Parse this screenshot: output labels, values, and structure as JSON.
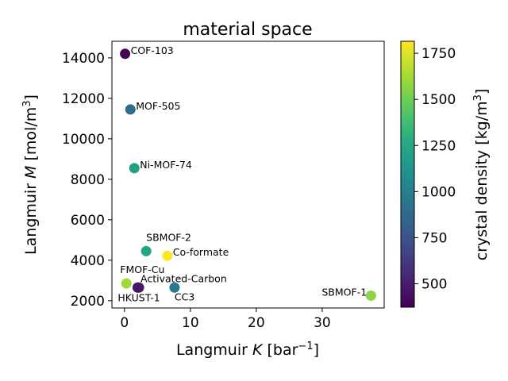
{
  "chart_data": {
    "type": "scatter",
    "title": "material space",
    "xlabel_text": "Langmuir ",
    "xlabel_var": "K",
    "xlabel_unit": " [bar",
    "xlabel_exp": "−1",
    "xlabel_close": "]",
    "ylabel_text": "Langmuir ",
    "ylabel_var": "M",
    "ylabel_unit": " [mol/m",
    "ylabel_exp": "3",
    "ylabel_close": "]",
    "xlim": [
      -1.9,
      39.4
    ],
    "ylim": [
      1640,
      14820
    ],
    "xticks": [
      0,
      10,
      20,
      30
    ],
    "yticks": [
      2000,
      4000,
      6000,
      8000,
      10000,
      12000,
      14000
    ],
    "colorbar": {
      "label_text": "crystal density [kg/m",
      "label_exp": "3",
      "label_close": "]",
      "colormap": "viridis",
      "range": [
        373,
        1815
      ],
      "ticks": [
        500,
        750,
        1000,
        1250,
        1500,
        1750
      ]
    },
    "points": [
      {
        "label": "COF-103",
        "x": 0.1,
        "y": 14200,
        "density": 390
      },
      {
        "label": "MOF-505",
        "x": 0.9,
        "y": 11450,
        "density": 900
      },
      {
        "label": "Ni-MOF-74",
        "x": 1.5,
        "y": 8550,
        "density": 1200
      },
      {
        "label": "SBMOF-2",
        "x": 3.3,
        "y": 4450,
        "density": 1220
      },
      {
        "label": "Co-formate",
        "x": 6.5,
        "y": 4220,
        "density": 1815
      },
      {
        "label": "FMOF-Cu",
        "x": 0.3,
        "y": 2850,
        "density": 1620
      },
      {
        "label": "Activated-Carbon",
        "x": 2.2,
        "y": 2650,
        "density": 480
      },
      {
        "label": "HKUST-1",
        "x": 2.0,
        "y": 2650,
        "density": 470
      },
      {
        "label": "CC3",
        "x": 7.6,
        "y": 2650,
        "density": 970
      },
      {
        "label": "SBMOF-1",
        "x": 37.4,
        "y": 2250,
        "density": 1570
      }
    ]
  }
}
